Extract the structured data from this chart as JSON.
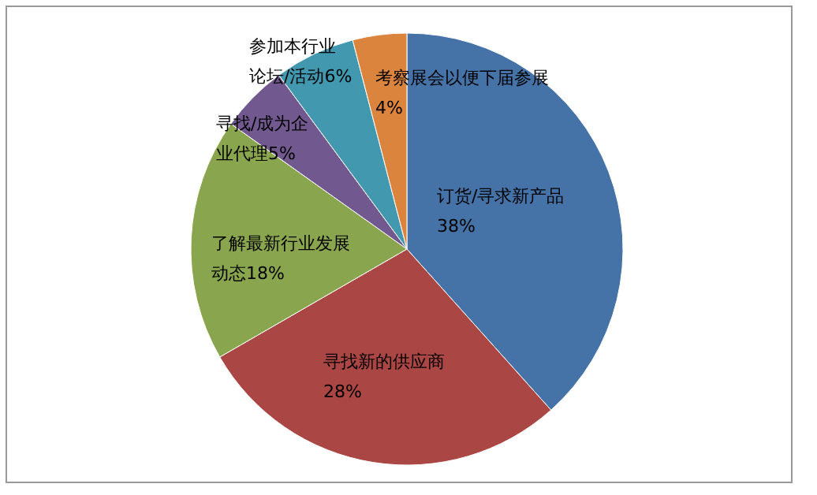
{
  "chart_data": {
    "type": "pie",
    "categories": [
      "订货/寻求新产品",
      "寻找新的供应商",
      "了解最新行业发展动态",
      "寻找/成为企业代理",
      "参加本行业论坛/活动",
      "考察展会以便下届参展"
    ],
    "values": [
      38,
      28,
      18,
      5,
      6,
      4
    ],
    "value_labels": [
      "38%",
      "28%",
      "18%",
      "5%",
      "6%",
      "4%"
    ],
    "colors": [
      "#4572a7",
      "#aa4643",
      "#89a54e",
      "#71588f",
      "#4198af",
      "#db843d"
    ],
    "legend": false
  }
}
